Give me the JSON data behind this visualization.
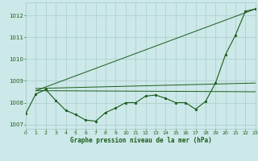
{
  "title": "Graphe pression niveau de la mer (hPa)",
  "bg_color": "#cce8e8",
  "grid_color": "#aacccc",
  "line_color": "#1a5c1a",
  "xlim": [
    0,
    23
  ],
  "ylim": [
    1006.8,
    1012.6
  ],
  "yticks": [
    1007,
    1008,
    1009,
    1010,
    1011,
    1012
  ],
  "xticks": [
    0,
    1,
    2,
    3,
    4,
    5,
    6,
    7,
    8,
    9,
    10,
    11,
    12,
    13,
    14,
    15,
    16,
    17,
    18,
    19,
    20,
    21,
    22,
    23
  ],
  "series1_x": [
    0,
    1,
    2,
    3,
    4,
    5,
    6,
    7,
    8,
    9,
    10,
    11,
    12,
    13,
    14,
    15,
    16,
    17,
    18,
    19,
    20,
    21,
    22,
    23
  ],
  "series1_y": [
    1007.5,
    1008.4,
    1008.6,
    1008.1,
    1007.65,
    1007.45,
    1007.2,
    1007.15,
    1007.55,
    1007.75,
    1008.0,
    1008.0,
    1008.3,
    1008.35,
    1008.2,
    1008.0,
    1008.0,
    1007.7,
    1008.05,
    1008.9,
    1010.2,
    1011.1,
    1012.2,
    1012.3
  ],
  "line1_x": [
    1,
    23
  ],
  "line1_y": [
    1008.55,
    1008.5
  ],
  "line2_x": [
    1,
    23
  ],
  "line2_y": [
    1008.65,
    1008.9
  ],
  "line3_x": [
    1,
    23
  ],
  "line3_y": [
    1008.55,
    1012.3
  ]
}
